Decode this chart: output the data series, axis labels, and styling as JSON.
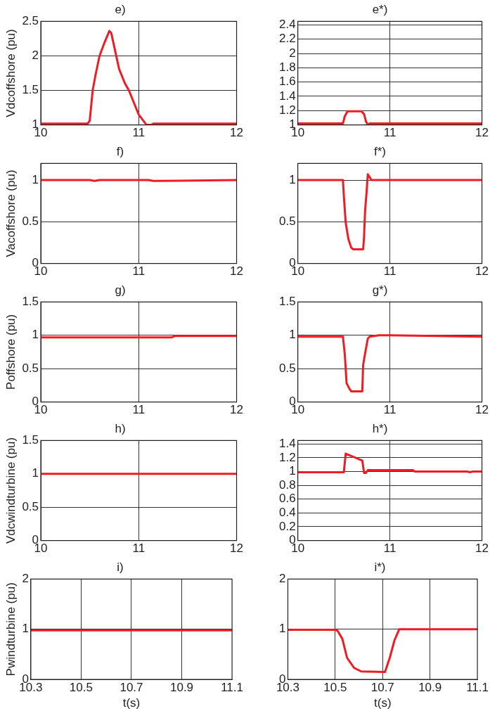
{
  "chart_data": [
    {
      "type": "line",
      "title": "e)",
      "ylabel": "Vdcoffshore (pu)",
      "xlim": [
        10,
        12
      ],
      "xticks": [
        10,
        11,
        12
      ],
      "ylim": [
        1,
        2.5
      ],
      "yticks": [
        1,
        1.5,
        2,
        2.5
      ],
      "grid": true,
      "series": [
        {
          "color": "#ee1c25",
          "x": [
            10,
            10.48,
            10.5,
            10.53,
            10.56,
            10.6,
            10.65,
            10.7,
            10.72,
            10.8,
            10.86,
            10.9,
            11.0,
            11.08,
            11.13,
            11.15,
            12
          ],
          "values": [
            1.02,
            1.02,
            1.06,
            1.5,
            1.73,
            2.0,
            2.19,
            2.36,
            2.33,
            1.81,
            1.6,
            1.5,
            1.15,
            1.0,
            1.0,
            1.02,
            1.02
          ]
        }
      ]
    },
    {
      "type": "line",
      "title": "e*)",
      "xlim": [
        10,
        12
      ],
      "xticks": [
        10,
        11,
        12
      ],
      "ylim": [
        1,
        2.45
      ],
      "yticks": [
        1,
        1.2,
        1.4,
        1.6,
        1.8,
        2,
        2.2,
        2.4
      ],
      "grid": true,
      "series": [
        {
          "color": "#ee1c25",
          "x": [
            10,
            10.49,
            10.51,
            10.54,
            10.69,
            10.72,
            10.74,
            10.76,
            10.78,
            12
          ],
          "values": [
            1.02,
            1.02,
            1.12,
            1.19,
            1.19,
            1.15,
            1.05,
            1.0,
            1.02,
            1.02
          ]
        }
      ]
    },
    {
      "type": "line",
      "title": "f)",
      "ylabel": "Vacoffshore (pu)",
      "xlim": [
        10,
        12
      ],
      "xticks": [
        10,
        11,
        12
      ],
      "ylim": [
        0,
        1.2
      ],
      "yticks": [
        0,
        0.5,
        1
      ],
      "grid": true,
      "series": [
        {
          "color": "#ee1c25",
          "x": [
            10,
            10.5,
            10.55,
            10.6,
            11.1,
            11.15,
            12
          ],
          "values": [
            1.0,
            1.0,
            0.99,
            1.0,
            1.0,
            0.99,
            1.0
          ]
        }
      ]
    },
    {
      "type": "line",
      "title": "f*)",
      "xlim": [
        10,
        12
      ],
      "xticks": [
        10,
        11,
        12
      ],
      "ylim": [
        0,
        1.2
      ],
      "yticks": [
        0,
        0.5,
        1
      ],
      "grid": true,
      "series": [
        {
          "color": "#ee1c25",
          "x": [
            10,
            10.49,
            10.5,
            10.52,
            10.55,
            10.58,
            10.6,
            10.71,
            10.72,
            10.73,
            10.75,
            10.76,
            10.8,
            11,
            12
          ],
          "values": [
            1.0,
            1.0,
            0.81,
            0.49,
            0.29,
            0.19,
            0.17,
            0.17,
            0.33,
            0.62,
            0.9,
            1.07,
            1.0,
            1.0,
            1.0
          ]
        }
      ]
    },
    {
      "type": "line",
      "title": "g)",
      "ylabel": "Poffshore (pu)",
      "xlim": [
        10,
        12
      ],
      "xticks": [
        10,
        11,
        12
      ],
      "ylim": [
        0,
        1.5
      ],
      "yticks": [
        0,
        0.5,
        1,
        1.5
      ],
      "grid": true,
      "series": [
        {
          "color": "#ee1c25",
          "x": [
            10,
            11.34,
            11.37,
            12
          ],
          "values": [
            0.97,
            0.97,
            0.99,
            0.99
          ]
        }
      ]
    },
    {
      "type": "line",
      "title": "g*)",
      "xlim": [
        10,
        12
      ],
      "xticks": [
        10,
        11,
        12
      ],
      "ylim": [
        0,
        1.5
      ],
      "yticks": [
        0,
        0.5,
        1,
        1.5
      ],
      "grid": true,
      "series": [
        {
          "color": "#ee1c25",
          "x": [
            10,
            10.49,
            10.51,
            10.53,
            10.56,
            10.58,
            10.7,
            10.71,
            10.73,
            10.76,
            10.78,
            10.88,
            11,
            12
          ],
          "values": [
            0.98,
            0.98,
            0.72,
            0.28,
            0.2,
            0.16,
            0.16,
            0.56,
            0.72,
            0.95,
            0.98,
            1.0,
            1.0,
            0.98
          ]
        }
      ]
    },
    {
      "type": "line",
      "title": "h)",
      "ylabel": "Vdcwindturbine (pu)",
      "xlim": [
        10,
        12
      ],
      "xticks": [
        10,
        11,
        12
      ],
      "ylim": [
        0,
        1.5
      ],
      "yticks": [
        0,
        0.5,
        1,
        1.5
      ],
      "grid": true,
      "series": [
        {
          "color": "#ee1c25",
          "x": [
            10,
            12
          ],
          "values": [
            1.0,
            1.0
          ]
        }
      ]
    },
    {
      "type": "line",
      "title": "h*)",
      "xlim": [
        10,
        12
      ],
      "xticks": [
        10,
        11,
        12
      ],
      "ylim": [
        0,
        1.45
      ],
      "yticks": [
        0,
        0.2,
        0.4,
        0.6,
        0.8,
        1,
        1.2,
        1.4
      ],
      "grid": true,
      "series": [
        {
          "color": "#ee1c25",
          "x": [
            10,
            10.5,
            10.52,
            10.7,
            10.72,
            10.74,
            10.76,
            11.25,
            11.27,
            11.84,
            11.87,
            11.9,
            12
          ],
          "values": [
            0.99,
            0.99,
            1.26,
            1.16,
            0.98,
            0.98,
            1.02,
            1.02,
            1.0,
            1.0,
            0.99,
            1.0,
            1.0
          ]
        }
      ]
    },
    {
      "type": "line",
      "title": "i)",
      "ylabel": "Pwindturbine (pu)",
      "xlabel": "t(s)",
      "xlim": [
        10.3,
        11.1
      ],
      "xticks": [
        10.3,
        10.5,
        10.7,
        10.9,
        11.1
      ],
      "ylim": [
        0,
        2
      ],
      "yticks": [
        0,
        1,
        2
      ],
      "grid": true,
      "series": [
        {
          "color": "#ee1c25",
          "x": [
            10.3,
            11.1
          ],
          "values": [
            0.98,
            0.98
          ]
        }
      ]
    },
    {
      "type": "line",
      "title": "i*)",
      "xlabel": "t(s)",
      "xlim": [
        10.3,
        11.1
      ],
      "xticks": [
        10.3,
        10.5,
        10.7,
        10.9,
        11.1
      ],
      "ylim": [
        0,
        2
      ],
      "yticks": [
        0,
        1,
        2
      ],
      "grid": true,
      "series": [
        {
          "color": "#ee1c25",
          "x": [
            10.3,
            10.5,
            10.51,
            10.53,
            10.55,
            10.58,
            10.61,
            10.71,
            10.73,
            10.75,
            10.77,
            11.1
          ],
          "values": [
            0.99,
            0.99,
            0.97,
            0.81,
            0.43,
            0.23,
            0.16,
            0.15,
            0.43,
            0.78,
            1.0,
            1.0
          ]
        }
      ]
    }
  ]
}
